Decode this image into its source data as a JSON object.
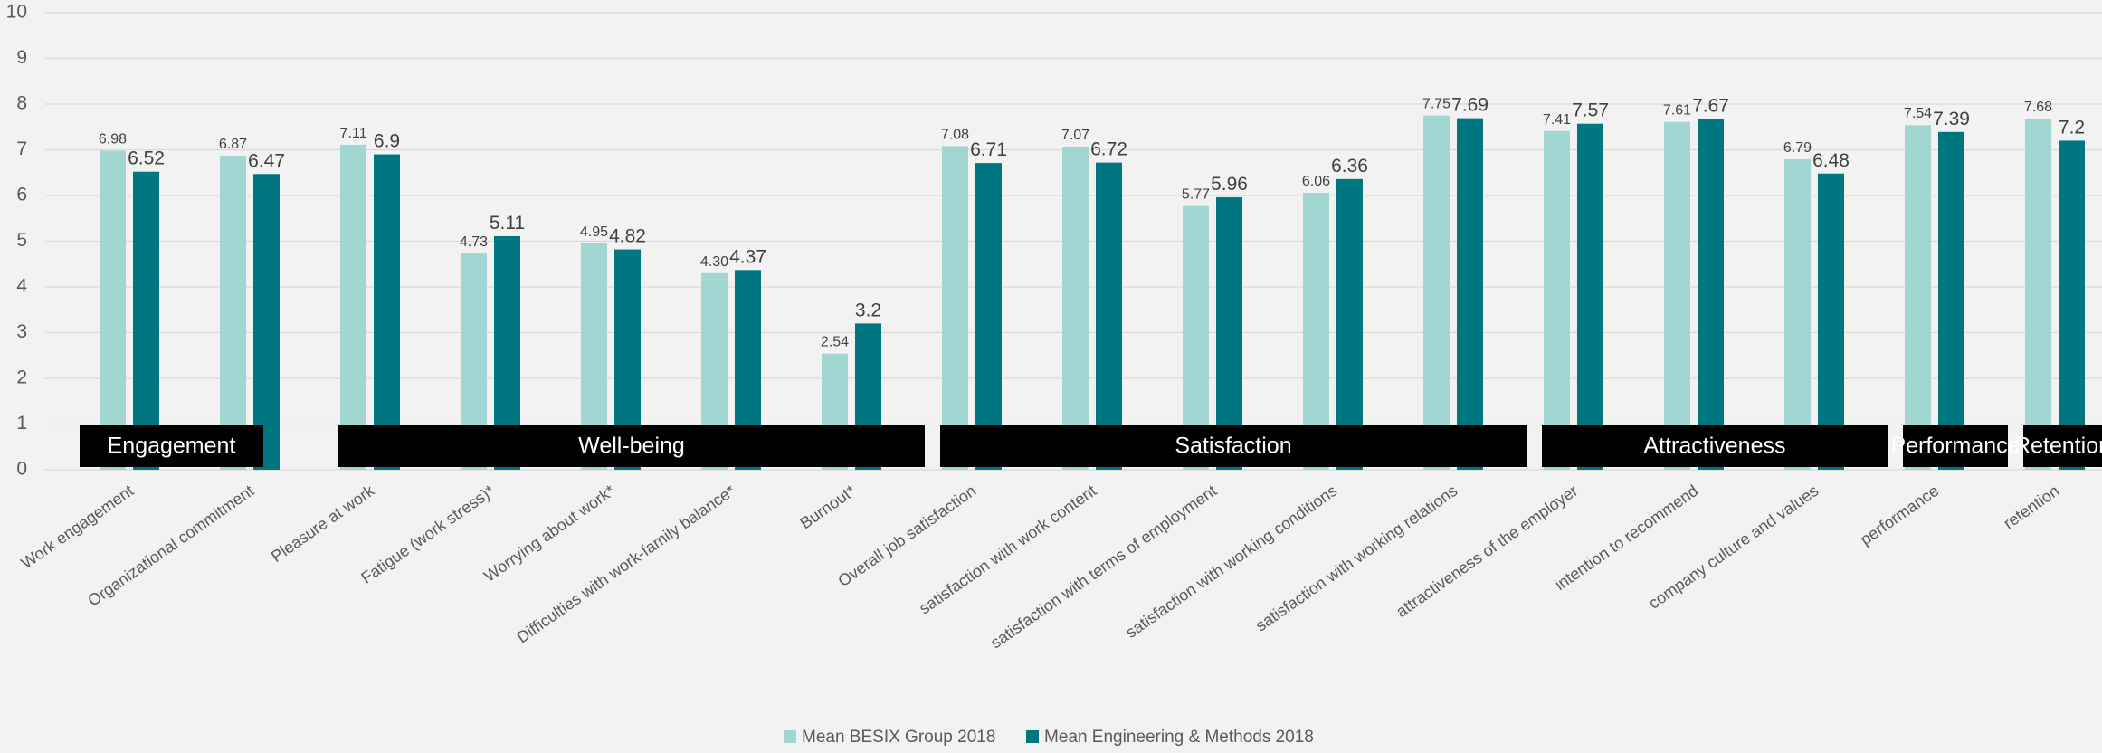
{
  "chart_data": {
    "type": "bar",
    "title": "",
    "xlabel": "",
    "ylabel": "",
    "ylim": [
      0,
      10
    ],
    "y_ticks": [
      "0",
      "1",
      "2",
      "3",
      "4",
      "5",
      "6",
      "7",
      "8",
      "9",
      "10"
    ],
    "grid": true,
    "legend_position": "bottom",
    "categories": [
      "Work engagement",
      "Organizational commitment",
      "Pleasure at work",
      "Fatigue (work stress)*",
      "Worrying about work*",
      "Difficulties with work-family balance*",
      "Burnout*",
      "Overall job satisfaction",
      "satisfaction with work content",
      "satisfaction with terms of employment",
      "satisfaction with working conditions",
      "satisfaction with working relations",
      "attractiveness of the employer",
      "intention to recommend",
      "company culture and values",
      "performance",
      "retention"
    ],
    "series": [
      {
        "name": "Mean BESIX Group 2018",
        "color": "#a1d6d2",
        "values": [
          6.98,
          6.87,
          7.11,
          4.73,
          4.95,
          4.3,
          2.54,
          7.08,
          7.07,
          5.77,
          6.06,
          7.75,
          7.41,
          7.61,
          6.79,
          7.54,
          7.68
        ],
        "labels": [
          "6.98",
          "6.87",
          "7.11",
          "4.73",
          "4.95",
          "4.30",
          "2.54",
          "7.08",
          "7.07",
          "5.77",
          "6.06",
          "7.75",
          "7.41",
          "7.61",
          "6.79",
          "7.54",
          "7.68"
        ]
      },
      {
        "name": "Mean Engineering & Methods 2018",
        "color": "#007780",
        "values": [
          6.52,
          6.47,
          6.9,
          5.11,
          4.82,
          4.37,
          3.2,
          6.71,
          6.72,
          5.96,
          6.36,
          7.69,
          7.57,
          7.67,
          6.48,
          7.39,
          7.2
        ],
        "labels": [
          "6.52",
          "6.47",
          "6.9",
          "5.11",
          "4.82",
          "4.37",
          "3.2",
          "6.71",
          "6.72",
          "5.96",
          "6.36",
          "7.69",
          "7.57",
          "7.67",
          "6.48",
          "7.39",
          "7.2"
        ]
      }
    ],
    "groups": [
      {
        "label": "Engagement",
        "first": 0,
        "last": 1
      },
      {
        "label": "Well-being",
        "first": 2,
        "last": 6
      },
      {
        "label": "Satisfaction",
        "first": 7,
        "last": 11
      },
      {
        "label": "Attractiveness",
        "first": 12,
        "last": 14
      },
      {
        "label": "Performance",
        "first": 15,
        "last": 15
      },
      {
        "label": "Retention",
        "first": 16,
        "last": 16
      }
    ]
  }
}
